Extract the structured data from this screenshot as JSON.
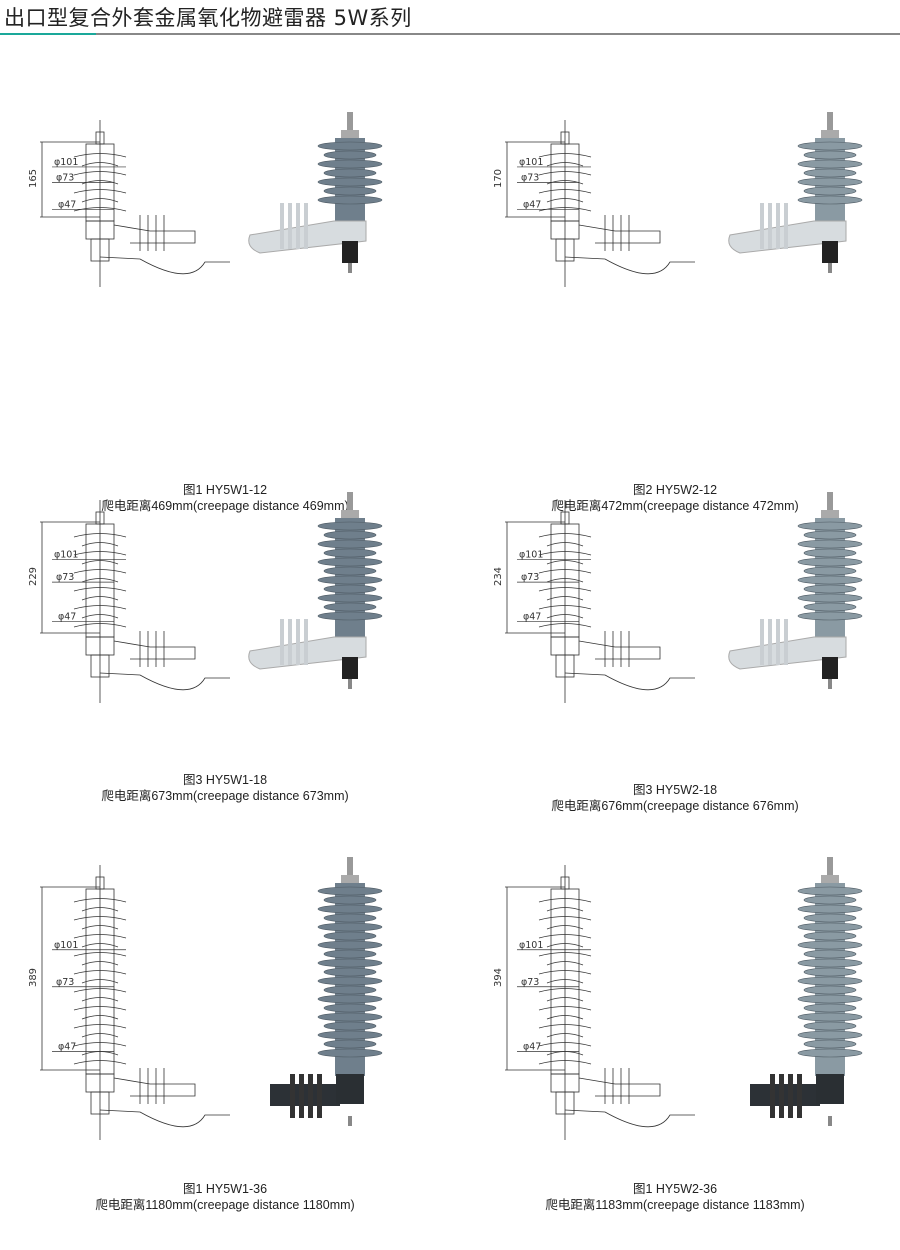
{
  "title": "出口型复合外套金属氧化物避雷器 5W系列",
  "figures": [
    {
      "caption_line1": "图1 HY5W1-12",
      "caption_line2": "爬电距离469mm(creepage  distance  469mm)",
      "height_label": "165",
      "dia_labels": [
        "φ101",
        "φ73",
        "φ47"
      ],
      "sheds": 7,
      "type": "W1"
    },
    {
      "caption_line1": "图2 HY5W2-12",
      "caption_line2": "爬电距离472mm(creepage  distance  472mm)",
      "height_label": "170",
      "dia_labels": [
        "φ101",
        "φ73",
        "φ47"
      ],
      "sheds": 7,
      "type": "W2"
    },
    {
      "caption_line1": "图3 HY5W1-18",
      "caption_line2": "爬电距离673mm(creepage  distance  673mm)",
      "height_label": "229",
      "dia_labels": [
        "φ101",
        "φ73",
        "φ47"
      ],
      "sheds": 11,
      "type": "W1"
    },
    {
      "caption_line1": "图3 HY5W2-18",
      "caption_line2": "爬电距离676mm(creepage  distance  676mm)",
      "height_label": "234",
      "dia_labels": [
        "φ101",
        "φ73",
        "φ47"
      ],
      "sheds": 11,
      "type": "W2"
    },
    {
      "caption_line1": "图1 HY5W1-36",
      "caption_line2": "爬电距离1180mm(creepage  distance  1180mm)",
      "height_label": "389",
      "dia_labels": [
        "φ101",
        "φ73",
        "φ47"
      ],
      "sheds": 19,
      "type": "W1"
    },
    {
      "caption_line1": "图1 HY5W2-36",
      "caption_line2": "爬电距离1183mm(creepage  distance  1183mm)",
      "height_label": "394",
      "dia_labels": [
        "φ101",
        "φ73",
        "φ47"
      ],
      "sheds": 19,
      "type": "W2"
    }
  ],
  "colors": {
    "accent": "#1aa89a",
    "housing": "#6f7f8c",
    "housing_light": "#8a9aa3",
    "bracket": "#d7dcdf",
    "bracket_dark": "#2c3136"
  }
}
